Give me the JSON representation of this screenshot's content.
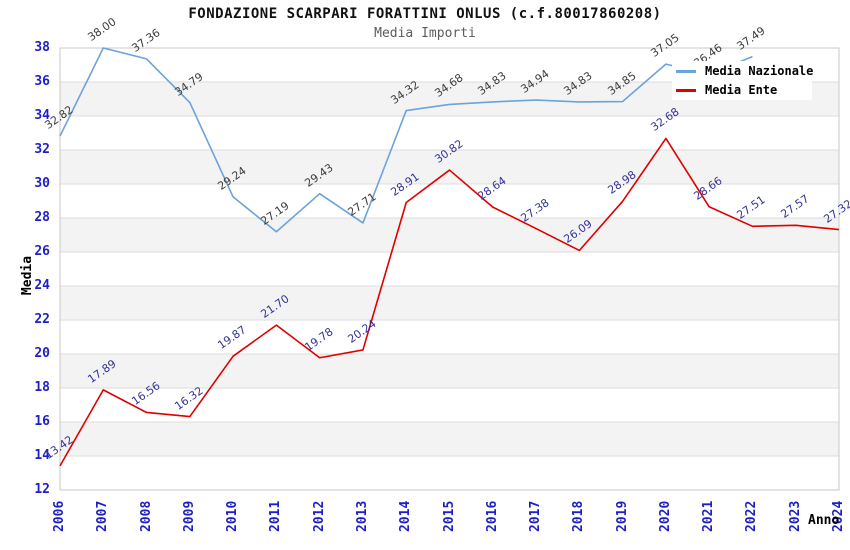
{
  "title": "FONDAZIONE SCARPARI FORATTINI ONLUS (c.f.80017860208)",
  "subtitle": "Media Importi",
  "axes": {
    "x_title": "Anno",
    "y_title": "Media",
    "y_tick_labels": [
      "12",
      "14",
      "16",
      "18",
      "20",
      "22",
      "24",
      "26",
      "28",
      "30",
      "32",
      "34",
      "36",
      "38"
    ]
  },
  "legend": {
    "position": "top-right",
    "items": [
      {
        "label": "Media Nazionale",
        "color": "#6ba3db"
      },
      {
        "label": "Media Ente",
        "color": "#e00000"
      }
    ]
  },
  "colors": {
    "national_line": "#6ba3db",
    "ente_line": "#e00000",
    "national_value_labels": "#3c3c3c",
    "ente_value_labels": "#333399",
    "axis_tick_text": "#1f1fc8",
    "band_fill": "#f3f3f3",
    "gridline": "#dcdcdc",
    "plot_border": "#c8c8c8"
  },
  "chart_data": {
    "type": "line",
    "title": "FONDAZIONE SCARPARI FORATTINI ONLUS (c.f.80017860208)",
    "subtitle": "Media Importi",
    "xlabel": "Anno",
    "ylabel": "Media",
    "ylim": [
      12,
      38
    ],
    "y_tick_step": 2,
    "grid": true,
    "background_bands": "alternating gray every 2 units",
    "legend_position": "top-right",
    "categories": [
      "2006",
      "2007",
      "2008",
      "2009",
      "2010",
      "2011",
      "2012",
      "2013",
      "2014",
      "2015",
      "2016",
      "2017",
      "2018",
      "2019",
      "2020",
      "2021",
      "2022",
      "2023",
      "2024"
    ],
    "series": [
      {
        "name": "Media Nazionale",
        "color": "#6ba3db",
        "label_color": "#3c3c3c",
        "values": [
          32.82,
          38.0,
          37.36,
          34.79,
          29.24,
          27.19,
          29.43,
          27.71,
          34.32,
          34.68,
          34.83,
          34.94,
          34.83,
          34.85,
          37.05,
          36.46,
          37.49,
          null,
          null
        ]
      },
      {
        "name": "Media Ente",
        "color": "#e00000",
        "label_color": "#333399",
        "values": [
          13.42,
          17.89,
          16.56,
          16.32,
          19.87,
          21.7,
          19.78,
          20.24,
          28.91,
          30.82,
          28.64,
          27.38,
          26.09,
          28.98,
          32.68,
          28.66,
          27.51,
          27.57,
          27.32
        ]
      }
    ]
  }
}
